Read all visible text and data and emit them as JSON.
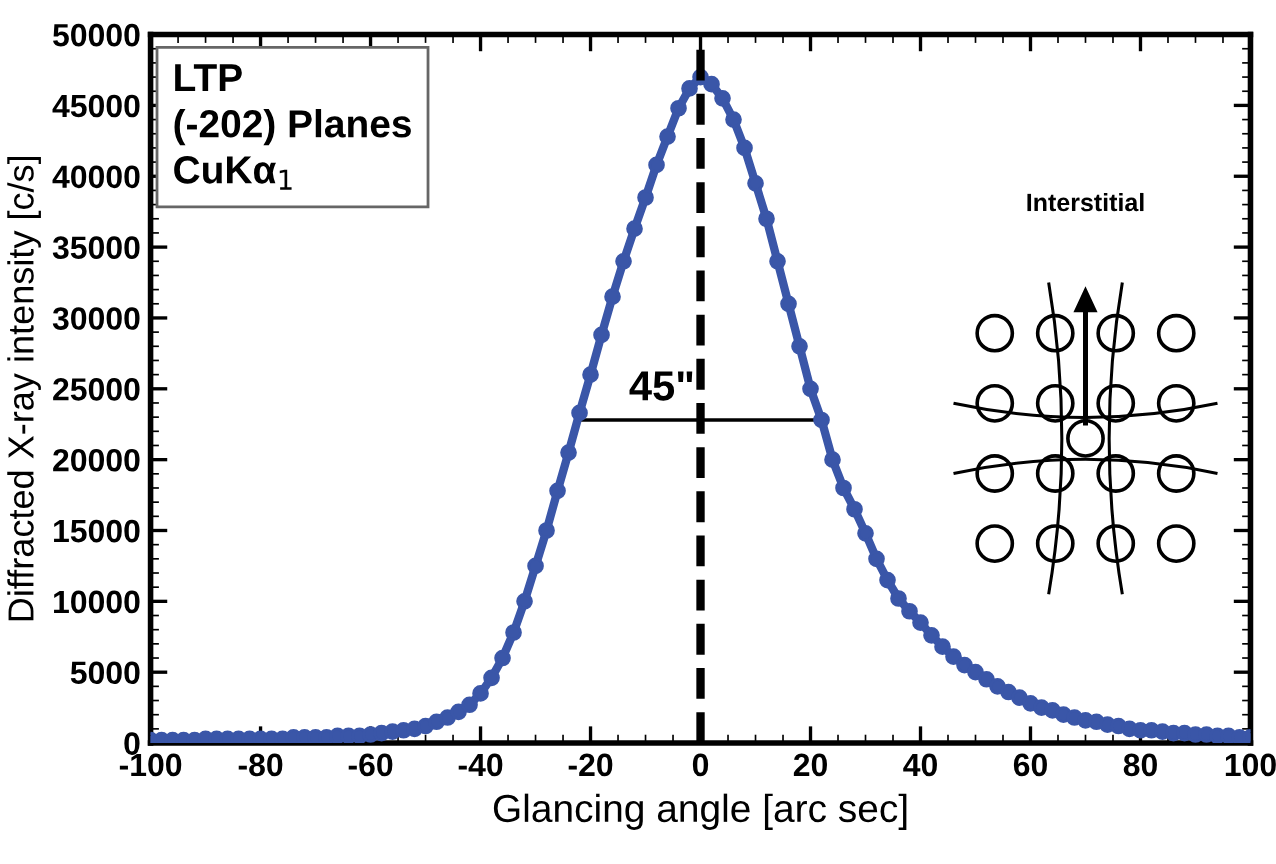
{
  "chart_data": {
    "type": "line",
    "xlabel": "Glancing angle [arc sec]",
    "ylabel": "Diffracted X-ray intensity [c/s]",
    "x": [
      -100,
      -98,
      -96,
      -94,
      -92,
      -90,
      -88,
      -86,
      -84,
      -82,
      -80,
      -78,
      -76,
      -74,
      -72,
      -70,
      -68,
      -66,
      -64,
      -62,
      -60,
      -58,
      -56,
      -54,
      -52,
      -50,
      -48,
      -46,
      -44,
      -42,
      -40,
      -38,
      -36,
      -34,
      -32,
      -30,
      -28,
      -26,
      -24,
      -22,
      -20,
      -18,
      -16,
      -14,
      -12,
      -10,
      -8,
      -6,
      -4,
      -2,
      0,
      2,
      4,
      6,
      8,
      10,
      12,
      14,
      16,
      18,
      20,
      22,
      24,
      26,
      28,
      30,
      32,
      34,
      36,
      38,
      40,
      42,
      44,
      46,
      48,
      50,
      52,
      54,
      56,
      58,
      60,
      62,
      64,
      66,
      68,
      70,
      72,
      74,
      76,
      78,
      80,
      82,
      84,
      86,
      88,
      90,
      92,
      94,
      96,
      98,
      100
    ],
    "series": [
      {
        "color": "#3a56a8",
        "values": [
          200,
          200,
          200,
          200,
          200,
          300,
          300,
          300,
          300,
          300,
          300,
          300,
          300,
          400,
          400,
          400,
          400,
          500,
          500,
          500,
          600,
          700,
          800,
          900,
          1000,
          1200,
          1500,
          1800,
          2200,
          2700,
          3500,
          4600,
          6000,
          7800,
          10000,
          12500,
          15000,
          17800,
          20500,
          23300,
          26000,
          28800,
          31500,
          34000,
          36300,
          38500,
          40800,
          42800,
          44800,
          46200,
          47000,
          46500,
          45500,
          44000,
          42000,
          39500,
          37000,
          34000,
          31000,
          28000,
          25000,
          22800,
          20000,
          18000,
          16500,
          14800,
          13000,
          11500,
          10200,
          9300,
          8500,
          7600,
          6800,
          6100,
          5500,
          5000,
          4500,
          4000,
          3600,
          3200,
          2800,
          2500,
          2300,
          2000,
          1800,
          1600,
          1500,
          1300,
          1200,
          1000,
          900,
          900,
          800,
          700,
          700,
          600,
          600,
          500,
          500,
          400,
          400
        ]
      }
    ],
    "xlim": [
      -100,
      100
    ],
    "xticks": [
      -100,
      -80,
      -60,
      -40,
      -20,
      0,
      20,
      40,
      60,
      80,
      100
    ],
    "ylim": [
      0,
      50000
    ],
    "yticks": [
      0,
      5000,
      10000,
      15000,
      20000,
      25000,
      30000,
      35000,
      40000,
      45000,
      50000
    ],
    "marker": "circle",
    "line_style": "solid",
    "grid": false,
    "ref_lines": [
      {
        "axis": "x",
        "value": 0,
        "color": "#000000",
        "line_style": "dashed"
      }
    ],
    "annotations": [
      {
        "text": "45\"",
        "x": 0,
        "y": 22800
      },
      "LTP\n(-202) Planes\nCuKα$_{1}$",
      "Interstitial"
    ]
  }
}
